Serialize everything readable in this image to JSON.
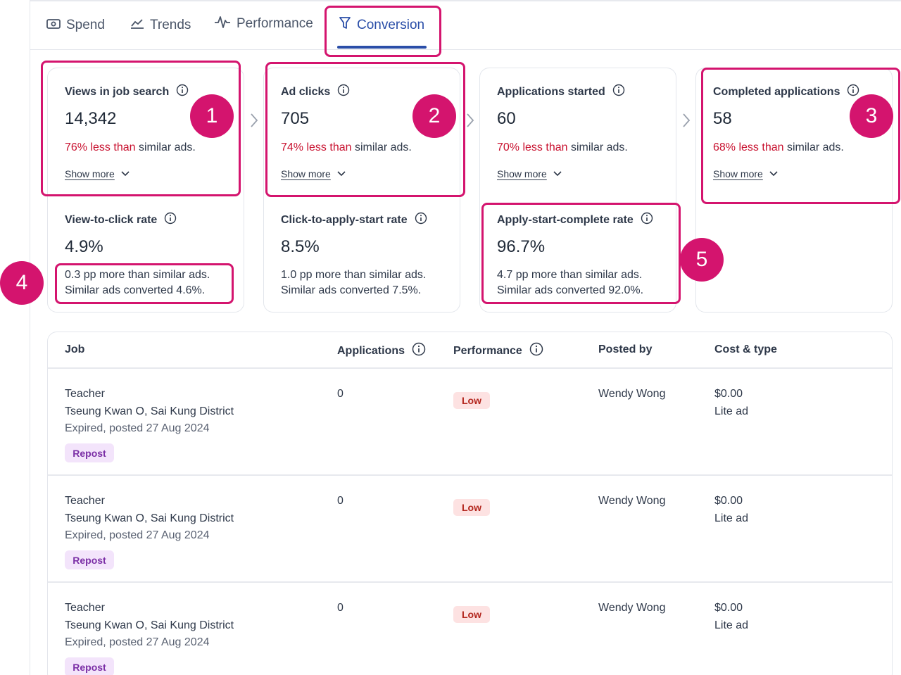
{
  "tabs": [
    {
      "label": "Spend",
      "icon": "money-icon"
    },
    {
      "label": "Trends",
      "icon": "trend-line-icon"
    },
    {
      "label": "Performance",
      "icon": "pulse-icon"
    },
    {
      "label": "Conversion",
      "icon": "funnel-icon",
      "active": true
    }
  ],
  "metrics": [
    {
      "title": "Views in job search",
      "value": "14,342",
      "compare_neg": "76% less than",
      "compare_rest": " similar ads.",
      "show_more": "Show more",
      "rate_title": "View-to-click rate",
      "rate_value": "4.9%",
      "rate_line1": "0.3 pp more than similar ads.",
      "rate_line2": "Similar ads converted 4.6%."
    },
    {
      "title": "Ad clicks",
      "value": "705",
      "compare_neg": "74% less than",
      "compare_rest": " similar ads.",
      "show_more": "Show more",
      "rate_title": "Click-to-apply-start rate",
      "rate_value": "8.5%",
      "rate_line1": "1.0 pp more than similar ads.",
      "rate_line2": "Similar ads converted 7.5%."
    },
    {
      "title": "Applications started",
      "value": "60",
      "compare_neg": "70% less than",
      "compare_rest": " similar ads.",
      "show_more": "Show more",
      "rate_title": "Apply-start-complete rate",
      "rate_value": "96.7%",
      "rate_line1": "4.7 pp more than similar ads.",
      "rate_line2": "Similar ads converted 92.0%."
    },
    {
      "title": "Completed applications",
      "value": "58",
      "compare_neg": "68% less than",
      "compare_rest": " similar ads.",
      "show_more": "Show more"
    }
  ],
  "callouts": [
    "1",
    "2",
    "3",
    "4",
    "5"
  ],
  "table": {
    "headers": {
      "job": "Job",
      "applications": "Applications",
      "performance": "Performance",
      "posted_by": "Posted by",
      "cost_type": "Cost & type"
    },
    "rows": [
      {
        "title": "Teacher",
        "location": "Tseung Kwan O, Sai Kung District",
        "status": "Expired, posted 27 Aug 2024",
        "action": "Repost",
        "applications": "0",
        "performance": "Low",
        "posted_by": "Wendy Wong",
        "cost": "$0.00",
        "type": "Lite ad"
      },
      {
        "title": "Teacher",
        "location": "Tseung Kwan O, Sai Kung District",
        "status": "Expired, posted 27 Aug 2024",
        "action": "Repost",
        "applications": "0",
        "performance": "Low",
        "posted_by": "Wendy Wong",
        "cost": "$0.00",
        "type": "Lite ad"
      },
      {
        "title": "Teacher",
        "location": "Tseung Kwan O, Sai Kung District",
        "status": "Expired, posted 27 Aug 2024",
        "action": "Repost",
        "applications": "0",
        "performance": "Low",
        "posted_by": "Wendy Wong",
        "cost": "$0.00",
        "type": "Lite ad"
      }
    ]
  },
  "colors": {
    "accent": "#2a4ea8",
    "highlight": "#d4146e",
    "negative": "#c8102e",
    "low_badge_bg": "#fde2e2",
    "repost_bg": "#f3e4fb"
  }
}
